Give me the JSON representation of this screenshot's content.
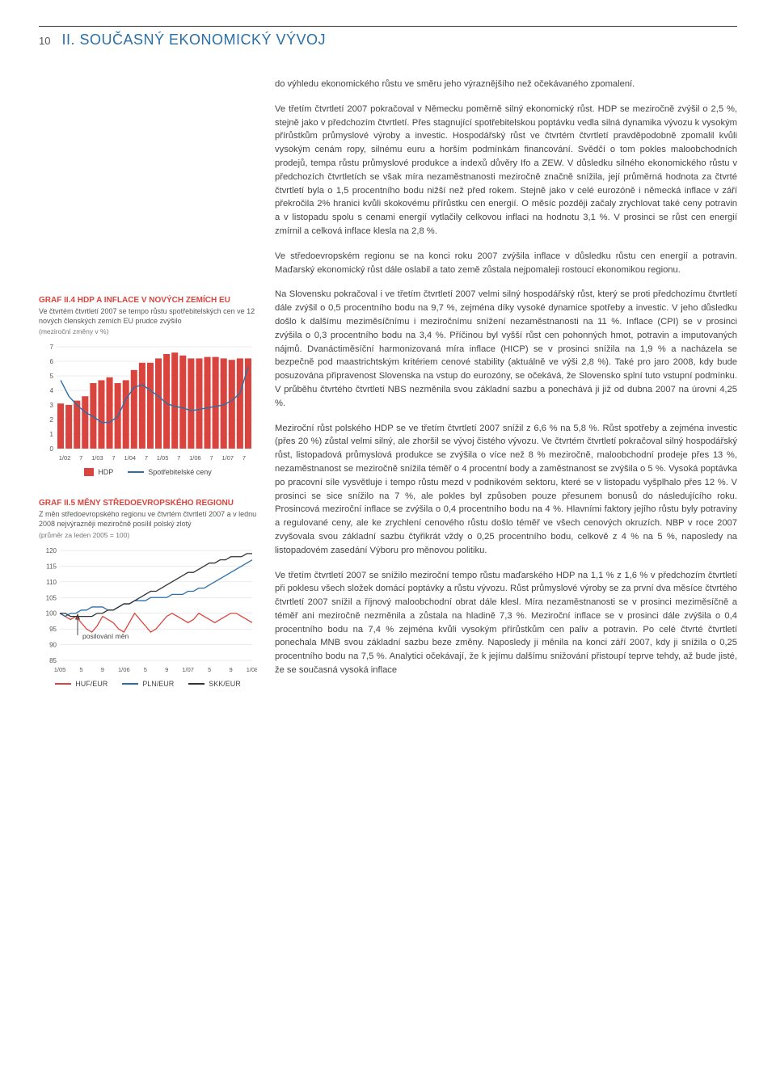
{
  "header": {
    "page_number": "10",
    "title": "II. SOUČASNÝ EKONOMICKÝ VÝVOJ"
  },
  "paragraphs": {
    "p1": "do výhledu ekonomického růstu ve směru jeho výraznějšího než očekávaného zpomalení.",
    "p2": "Ve třetím čtvrtletí 2007 pokračoval v Německu poměrně silný ekonomický růst. HDP se meziročně zvýšil o 2,5 %, stejně jako v předchozím čtvrtletí. Přes stagnující spotřebitelskou poptávku vedla silná dynamika vývozu k vysokým přírůstkům průmyslové výroby a investic. Hospodářský růst ve čtvrtém čtvrtletí pravděpodobně zpomalil kvůli vysokým cenám ropy, silnému euru a horším podmínkám financování. Svědčí o tom pokles maloobchodních prodejů, tempa růstu průmyslové produkce a indexů důvěry Ifo a ZEW. V důsledku silného ekonomického růstu v předchozích čtvrtletích se však míra nezaměstnanosti meziročně značně snížila, její průměrná hodnota za čtvrté čtvrtletí byla o 1,5 procentního bodu nižší než před rokem. Stejně jako v celé eurozóně i německá inflace v září překročila 2% hranici kvůli skokovému přírůstku cen energií. O měsíc později začaly zrychlovat také ceny potravin a v listopadu spolu s cenami energií vytlačily celkovou inflaci na hodnotu 3,1 %. V prosinci se růst cen energií zmírnil a celková inflace klesla na 2,8 %.",
    "p3": "Ve středoevropském regionu se na konci roku 2007 zvýšila inflace v důsledku růstu cen energií a potravin. Maďarský ekonomický růst dále oslabil a tato země zůstala nejpomaleji rostoucí ekonomikou regionu.",
    "p4": "Na Slovensku pokračoval i ve třetím čtvrtletí 2007 velmi silný hospodářský růst, který se proti předchozímu čtvrtletí dále zvýšil o 0,5 procentního bodu na 9,7 %, zejména díky vysoké dynamice spotřeby a investic. V jeho důsledku došlo k dalšímu meziměsíčnímu i meziročnímu snížení nezaměstnanosti na 11 %. Inflace (CPI) se v prosinci zvýšila o 0,3 procentního bodu na 3,4 %. Příčinou byl vyšší růst cen pohonných hmot, potravin a imputovaných nájmů. Dvanáctiměsíční harmonizovaná míra inflace (HICP) se v prosinci snížila na 1,9 % a nacházela se bezpečně pod maastrichtským kritériem cenové stability (aktuálně ve výši 2,8 %). Také pro jaro 2008, kdy bude posuzována připravenost Slovenska na vstup do eurozóny, se očekává, že Slovensko splní tuto vstupní podmínku. V průběhu čtvrtého čtvrtletí NBS nezměnila svou základní sazbu a ponechává ji již od dubna 2007 na úrovni 4,25 %.",
    "p5": "Meziroční růst polského HDP se ve třetím čtvrtletí 2007 snížil z 6,6 % na 5,8 %. Růst spotřeby a zejména investic (přes 20 %) zůstal velmi silný, ale zhoršil se vývoj čistého vývozu. Ve čtvrtém čtvrtletí pokračoval silný hospodářský růst, listopadová průmyslová produkce se zvýšila o více než 8 % meziročně, maloobchodní prodeje přes 13 %, nezaměstnanost se meziročně snížila téměř o 4 procentní body a zaměstnanost se zvýšila o 5 %. Vysoká poptávka po pracovní síle vysvětluje i tempo růstu mezd v podnikovém sektoru, které se v listopadu vyšplhalo přes 12 %. V prosinci se sice snížilo na 7 %, ale pokles byl způsoben pouze přesunem bonusů do následujícího roku. Prosincová meziroční inflace se zvýšila o 0,4 procentního bodu na 4 %. Hlavními faktory jejího růstu byly potraviny a regulované ceny, ale ke zrychlení cenového růstu došlo téměř ve všech cenových okruzích. NBP v roce 2007 zvyšovala svou základní sazbu čtyřikrát vždy o 0,25 procentního bodu, celkově z 4 % na 5 %, naposledy na listopadovém zasedání Výboru pro měnovou politiku.",
    "p6": "Ve třetím čtvrtletí 2007 se snížilo meziroční tempo růstu maďarského HDP na 1,1 % z 1,6 % v předchozím čtvrtletí při poklesu všech složek domácí poptávky a růstu vývozu. Růst průmyslové výroby se za první dva měsíce čtvrtého čtvrtletí 2007 snížil a říjnový maloobchodní obrat dále klesl. Míra nezaměstnanosti se v prosinci meziměsíčně a téměř ani meziročně nezměnila a zůstala na hladině 7,3 %. Meziroční inflace se v prosinci dále zvýšila o 0,4 procentního bodu na 7,4 % zejména kvůli vysokým přírůstkům cen paliv a potravin. Po celé čtvrté čtvrtletí ponechala MNB svou základní sazbu beze změny. Naposledy ji měnila na konci září 2007, kdy ji snížila o 0,25 procentního bodu na 7,5 %. Analytici očekávají, že k jejímu dalšímu snižování přistoupí teprve tehdy, až bude jisté, že se současná vysoká inflace"
  },
  "chart_ii4": {
    "title": "GRAF II.4  HDP A INFLACE V NOVÝCH ZEMÍCH EU",
    "desc": "Ve čtvrtém čtvrtletí 2007 se tempo růstu spotřebitelských cen ve 12 nových členských zemích EU prudce zvýšilo",
    "note": "(meziroční změny v %)",
    "type": "combo-bar-line",
    "x_labels": [
      "1/02",
      "7",
      "1/03",
      "7",
      "1/04",
      "7",
      "1/05",
      "7",
      "1/06",
      "7",
      "1/07",
      "7"
    ],
    "bar_values": [
      3.1,
      3.0,
      3.3,
      3.6,
      4.5,
      4.7,
      4.9,
      4.5,
      4.7,
      5.4,
      5.9,
      5.9,
      6.2,
      6.5,
      6.6,
      6.4,
      6.2,
      6.2,
      6.3,
      6.3,
      6.2,
      6.1,
      6.2,
      6.2
    ],
    "line_values": [
      4.7,
      3.6,
      3.0,
      2.5,
      2.2,
      1.8,
      1.8,
      2.2,
      3.4,
      4.2,
      4.4,
      4.0,
      3.6,
      3.1,
      2.9,
      2.8,
      2.6,
      2.7,
      2.8,
      2.9,
      3.0,
      3.3,
      3.8,
      5.6
    ],
    "y_ticks": [
      0,
      1,
      2,
      3,
      4,
      5,
      6,
      7
    ],
    "ylim": [
      0,
      7
    ],
    "bar_color": "#d9453e",
    "line_color": "#2a6fa8",
    "grid_color": "#d8d8d8",
    "bg_color": "#ffffff",
    "legend": {
      "bar": "HDP",
      "line": "Spotřebitelské ceny"
    }
  },
  "chart_ii5": {
    "title": "GRAF II.5  MĚNY STŘEDOEVROPSKÉHO REGIONU",
    "desc": "Z měn středoevropského regionu ve čtvrtém čtvrtletí 2007 a v lednu 2008 nejvýrazněji meziročně posílil polský zlotý",
    "note": "(průměr za leden 2005 = 100)",
    "type": "multi-line",
    "x_labels": [
      "1/05",
      "5",
      "9",
      "1/06",
      "5",
      "9",
      "1/07",
      "5",
      "9",
      "1/08"
    ],
    "y_ticks": [
      85,
      90,
      95,
      100,
      105,
      110,
      115,
      120
    ],
    "ylim": [
      85,
      120
    ],
    "series": {
      "huf": {
        "color": "#d9453e",
        "values": [
          100,
          99,
          98,
          99,
          97,
          95,
          94,
          96,
          99,
          98,
          97,
          95,
          94,
          97,
          100,
          98,
          96,
          94,
          95,
          97,
          99,
          100,
          99,
          98,
          97,
          98,
          100,
          99,
          98,
          97,
          98,
          99,
          100,
          100,
          99,
          98,
          97
        ]
      },
      "pln": {
        "color": "#2a6fa8",
        "values": [
          100,
          99,
          100,
          100,
          101,
          101,
          102,
          102,
          102,
          101,
          101,
          102,
          103,
          103,
          104,
          104,
          104,
          105,
          105,
          105,
          105,
          106,
          106,
          106,
          107,
          107,
          108,
          108,
          109,
          110,
          111,
          112,
          113,
          114,
          115,
          116,
          117
        ]
      },
      "skk": {
        "color": "#333333",
        "values": [
          100,
          100,
          99,
          99,
          99,
          99,
          99,
          100,
          100,
          101,
          101,
          102,
          103,
          103,
          104,
          105,
          106,
          107,
          107,
          108,
          109,
          110,
          111,
          112,
          113,
          113,
          114,
          115,
          116,
          116,
          117,
          117,
          118,
          118,
          118,
          119,
          119
        ]
      }
    },
    "grid_color": "#d8d8d8",
    "bg_color": "#ffffff",
    "annotation": "posilování měn",
    "legend": {
      "huf": "HUF/EUR",
      "pln": "PLN/EUR",
      "skk": "SKK/EUR"
    }
  }
}
